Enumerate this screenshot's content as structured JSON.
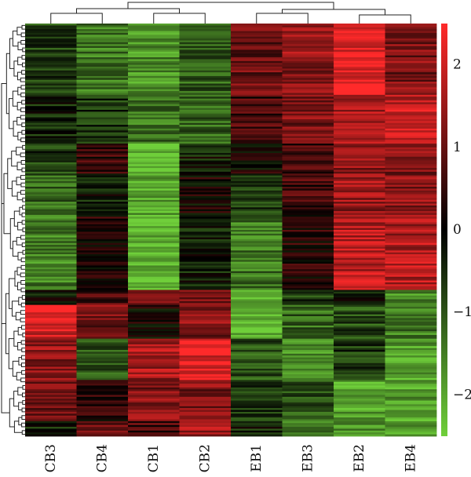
{
  "chart_data": {
    "type": "heatmap",
    "title": "",
    "xlabel": "",
    "ylabel": "",
    "columns": [
      "CB3",
      "CB4",
      "CB1",
      "CB2",
      "EB1",
      "EB3",
      "EB2",
      "EB4"
    ],
    "row_count": 220,
    "row_dendrogram": true,
    "column_dendrogram": true,
    "column_clusters": [
      [
        "CB3",
        "CB4",
        "CB1",
        "CB2"
      ],
      [
        "EB1",
        "EB3",
        "EB2",
        "EB4"
      ]
    ],
    "color_scale": {
      "min": -2.5,
      "max": 2.5,
      "ticks": [
        2,
        1,
        0,
        -1,
        -2
      ],
      "tick_labels": [
        "2",
        "1",
        "0",
        "−1",
        "−2"
      ],
      "low_color": "#6fcf3a",
      "mid_color": "#000000",
      "high_color": "#ff2a2a"
    },
    "row_blocks": [
      {
        "rows": 38,
        "values": [
          -0.8,
          -1.4,
          -1.7,
          -1.1,
          1.0,
          1.4,
          2.3,
          1.2
        ]
      },
      {
        "rows": 26,
        "values": [
          -0.4,
          -0.6,
          -1.3,
          -1.2,
          0.6,
          1.2,
          1.6,
          1.9
        ]
      },
      {
        "rows": 16,
        "values": [
          -0.7,
          0.5,
          -2.4,
          -0.3,
          0.1,
          0.7,
          1.3,
          1.3
        ]
      },
      {
        "rows": 22,
        "values": [
          -1.2,
          -0.3,
          -2.0,
          0.1,
          -0.7,
          0.6,
          1.5,
          1.4
        ]
      },
      {
        "rows": 40,
        "values": [
          -1.5,
          0.3,
          -2.2,
          -0.3,
          -1.4,
          0.3,
          1.8,
          1.7
        ]
      },
      {
        "rows": 8,
        "values": [
          -0.3,
          0.6,
          1.5,
          1.1,
          -2.0,
          -0.7,
          -0.2,
          -1.6
        ]
      },
      {
        "rows": 18,
        "values": [
          2.1,
          1.1,
          0.1,
          1.3,
          -2.2,
          -1.2,
          -0.9,
          -1.5
        ]
      },
      {
        "rows": 22,
        "values": [
          1.4,
          -1.0,
          1.6,
          2.2,
          -1.0,
          -1.6,
          -0.7,
          -1.9
        ]
      },
      {
        "rows": 22,
        "values": [
          1.0,
          0.3,
          1.3,
          1.2,
          -0.6,
          -1.0,
          -2.0,
          -1.9
        ]
      },
      {
        "rows": 8,
        "values": [
          -0.5,
          1.0,
          0.7,
          1.5,
          -0.4,
          -1.5,
          -1.6,
          -1.9
        ]
      }
    ]
  }
}
